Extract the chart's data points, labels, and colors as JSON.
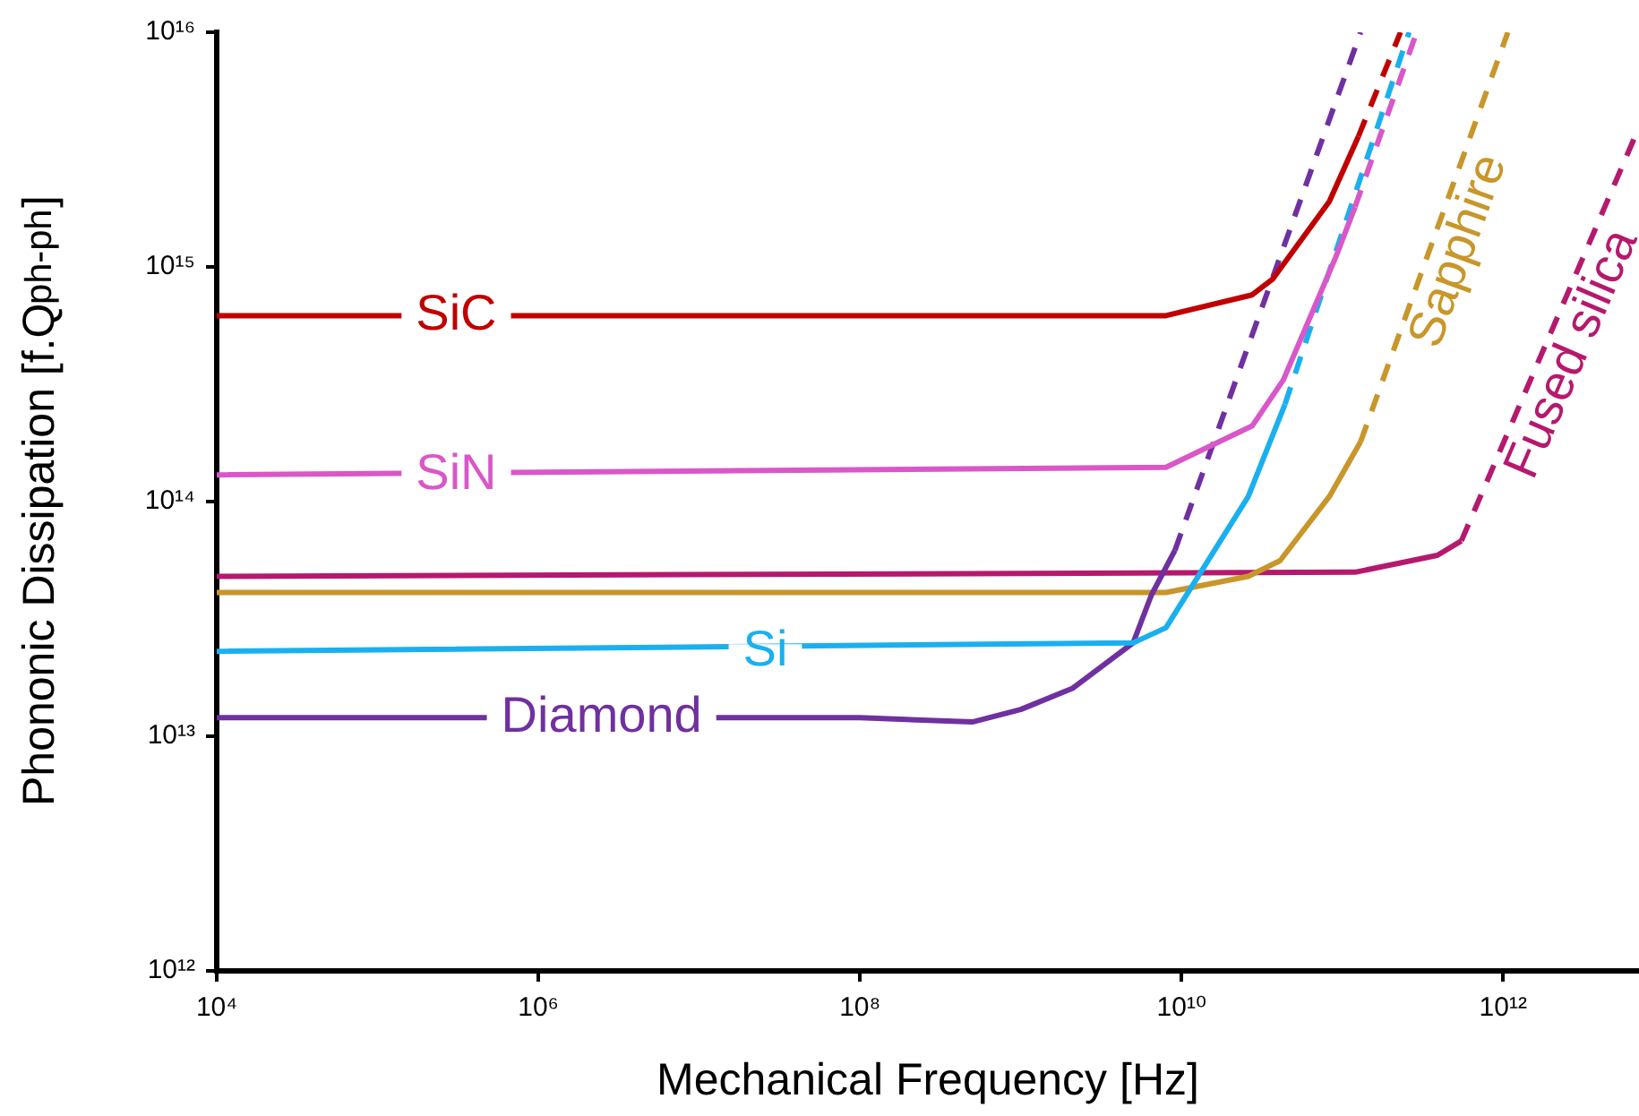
{
  "chart_data": {
    "type": "line",
    "xlabel": "Mechanical Frequency [Hz]",
    "ylabel": "Phononic Dissipation [f.Q$_{ph-ph}$]",
    "log": "xy",
    "grid": false,
    "legend": false,
    "marker": "none",
    "xlim": [
      10000,
      7000000000000
    ],
    "ylim": [
      1000000000000,
      10000000000000000
    ],
    "xticks": [
      {
        "value": 10000,
        "label": "10⁴"
      },
      {
        "value": 1000000,
        "label": "10⁶"
      },
      {
        "value": 100000000,
        "label": "10⁸"
      },
      {
        "value": 10000000000,
        "label": "10¹⁰"
      },
      {
        "value": 1000000000000,
        "label": "10¹²"
      }
    ],
    "yticks": [
      {
        "value": 1000000000000,
        "label": "10¹²"
      },
      {
        "value": 10000000000000,
        "label": "10¹³"
      },
      {
        "value": 100000000000000,
        "label": "10¹⁴"
      },
      {
        "value": 1000000000000000,
        "label": "10¹⁵"
      },
      {
        "value": 10000000000000000,
        "label": "10¹⁶"
      }
    ],
    "series": [
      {
        "name": "SiC",
        "color": "#c00000",
        "line_style": "solid",
        "x": [
          10000,
          8000000000,
          27500000000,
          37000000000,
          83000000000,
          126000000000
        ],
        "values": [
          620000000000000,
          620000000000000,
          760000000000000,
          890000000000000,
          1900000000000000,
          3600000000000000
        ]
      },
      {
        "color": "#c00000",
        "line_style": "dashed",
        "x": [
          126000000000,
          230000000000
        ],
        "values": [
          3600000000000000,
          10000000000000000
        ]
      },
      {
        "name": "SiN",
        "color": "#d957c8",
        "line_style": "solid",
        "x": [
          10000,
          8000000000,
          27500000000,
          43000000000,
          91000000000,
          120000000000
        ],
        "values": [
          130000000000000,
          140000000000000,
          210000000000000,
          330000000000000,
          1100000000000000,
          1800000000000000
        ]
      },
      {
        "color": "#d957c8",
        "line_style": "dashed",
        "x": [
          120000000000,
          290000000000
        ],
        "values": [
          1800000000000000,
          10000000000000000
        ]
      },
      {
        "name": "Si",
        "color": "#1ab0f0",
        "line_style": "solid",
        "x": [
          10000,
          5000000000,
          8000000000,
          26000000000,
          44000000000
        ],
        "values": [
          23000000000000,
          25000000000000,
          29000000000000,
          105000000000000,
          260000000000000
        ]
      },
      {
        "color": "#1ab0f0",
        "line_style": "dashed",
        "x": [
          44000000000,
          260000000000
        ],
        "values": [
          260000000000000,
          10000000000000000
        ]
      },
      {
        "name": "Diamond",
        "color": "#7030a0",
        "line_style": "solid",
        "x": [
          10000,
          100000000,
          500000000,
          1000000000,
          2100000000,
          5000000000,
          6500000000,
          9100000000
        ],
        "values": [
          12000000000000,
          12000000000000,
          11500000000000,
          13000000000000,
          16000000000000,
          25000000000000,
          40000000000000,
          62000000000000
        ]
      },
      {
        "color": "#7030a0",
        "line_style": "dashed",
        "x": [
          9100000000,
          130000000000
        ],
        "values": [
          62000000000000,
          10000000000000000
        ]
      },
      {
        "name": "Sapphire",
        "color": "#c8962a",
        "line_style": "solid",
        "x": [
          10000,
          8000000000,
          26000000000,
          41000000000,
          83000000000,
          130000000000
        ],
        "values": [
          41000000000000,
          41000000000000,
          48000000000000,
          56000000000000,
          105000000000000,
          180000000000000
        ]
      },
      {
        "color": "#c8962a",
        "line_style": "dashed",
        "x": [
          130000000000,
          1070000000000
        ],
        "values": [
          180000000000000,
          10000000000000000
        ]
      },
      {
        "name": "Fused silica",
        "color": "#b5196e",
        "line_style": "solid",
        "x": [
          10000,
          120000000000,
          390000000000,
          550000000000
        ],
        "values": [
          48000000000000,
          50000000000000,
          59000000000000,
          68000000000000
        ]
      },
      {
        "color": "#b5196e",
        "line_style": "dashed",
        "x": [
          550000000000,
          6500000000000
        ],
        "values": [
          68000000000000,
          3500000000000000
        ]
      }
    ]
  }
}
